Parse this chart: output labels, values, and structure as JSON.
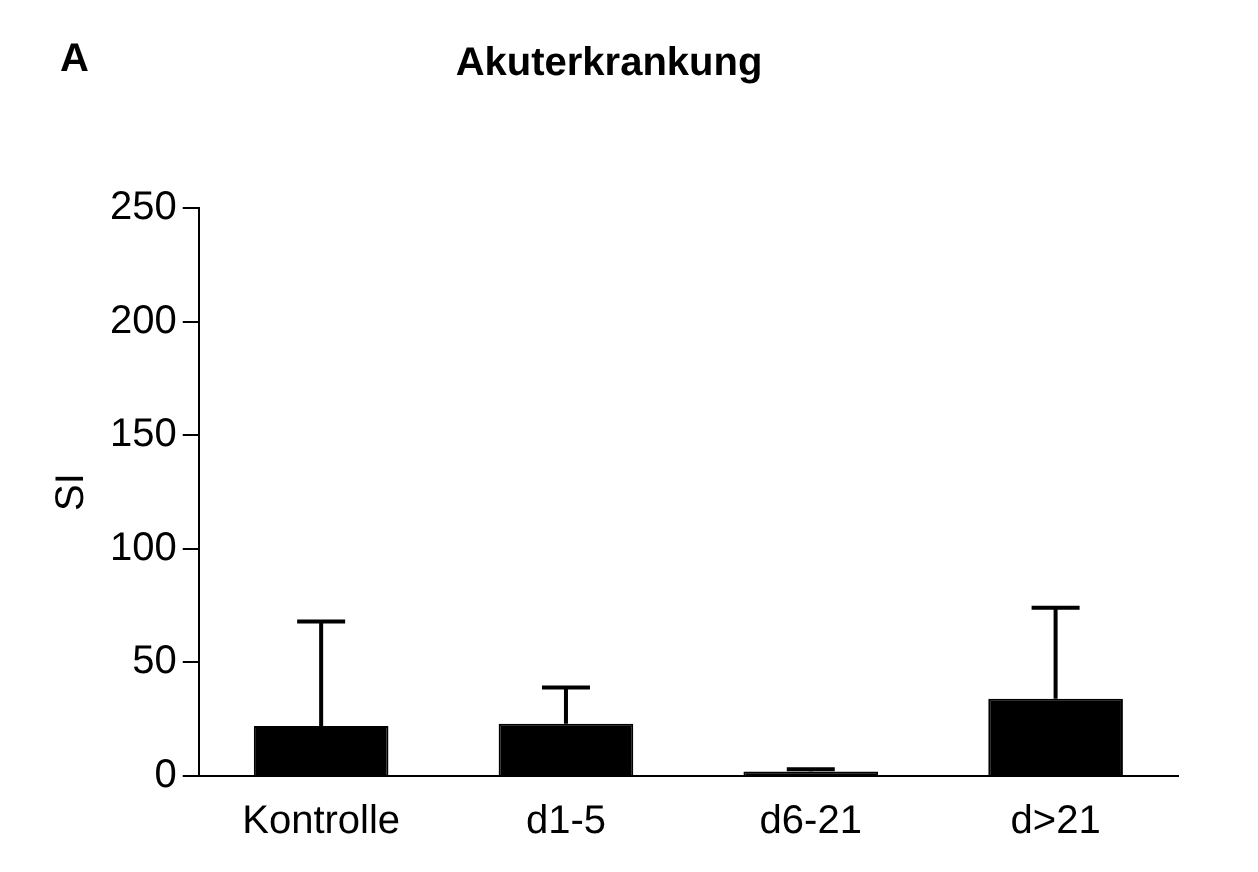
{
  "chart_data": {
    "type": "bar",
    "title": "Akuterkrankung",
    "ylabel": "SI",
    "categories": [
      "Kontrolle",
      "d1-5",
      "d6-21",
      "d>21"
    ],
    "values": [
      22,
      23,
      2,
      34
    ],
    "errors": [
      [
        22,
        68
      ],
      [
        23,
        39
      ],
      [
        2,
        3
      ],
      [
        34,
        74
      ]
    ],
    "color": "#000000",
    "ylim": [
      0,
      250
    ],
    "yticks": [
      0,
      50,
      100,
      150,
      200,
      250
    ],
    "annotations": [
      "A"
    ],
    "grid": false,
    "legend": false
  }
}
